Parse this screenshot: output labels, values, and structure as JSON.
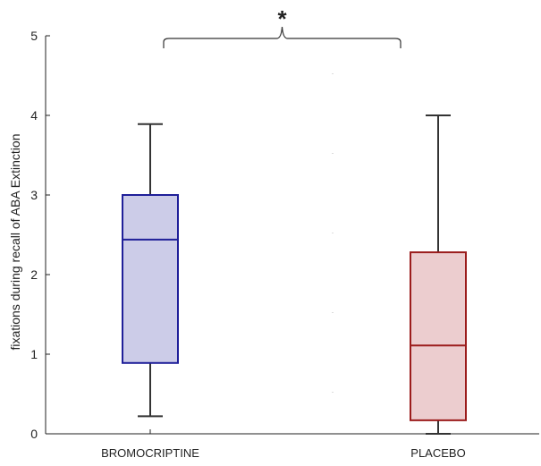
{
  "chart_data": {
    "type": "box",
    "title": "",
    "xlabel": "",
    "ylabel": "fixations during recall of ABA Extinction",
    "ylim": [
      0,
      5
    ],
    "y_ticks": [
      0,
      1,
      2,
      3,
      4,
      5
    ],
    "categories": [
      "BROMOCRIPTINE",
      "PLACEBO"
    ],
    "boxes": [
      {
        "category": "BROMOCRIPTINE",
        "whisker_low": 0.22,
        "q1": 0.89,
        "median": 2.44,
        "q3": 3.0,
        "whisker_high": 3.89,
        "fill": "#cccce8",
        "stroke": "#1f1f99"
      },
      {
        "category": "PLACEBO",
        "whisker_low": 0.0,
        "q1": 0.17,
        "median": 1.11,
        "q3": 2.28,
        "whisker_high": 4.0,
        "fill": "#eccdcf",
        "stroke": "#9b1c1c"
      }
    ],
    "significance_marker": "*",
    "grid": false,
    "legend": "none"
  }
}
